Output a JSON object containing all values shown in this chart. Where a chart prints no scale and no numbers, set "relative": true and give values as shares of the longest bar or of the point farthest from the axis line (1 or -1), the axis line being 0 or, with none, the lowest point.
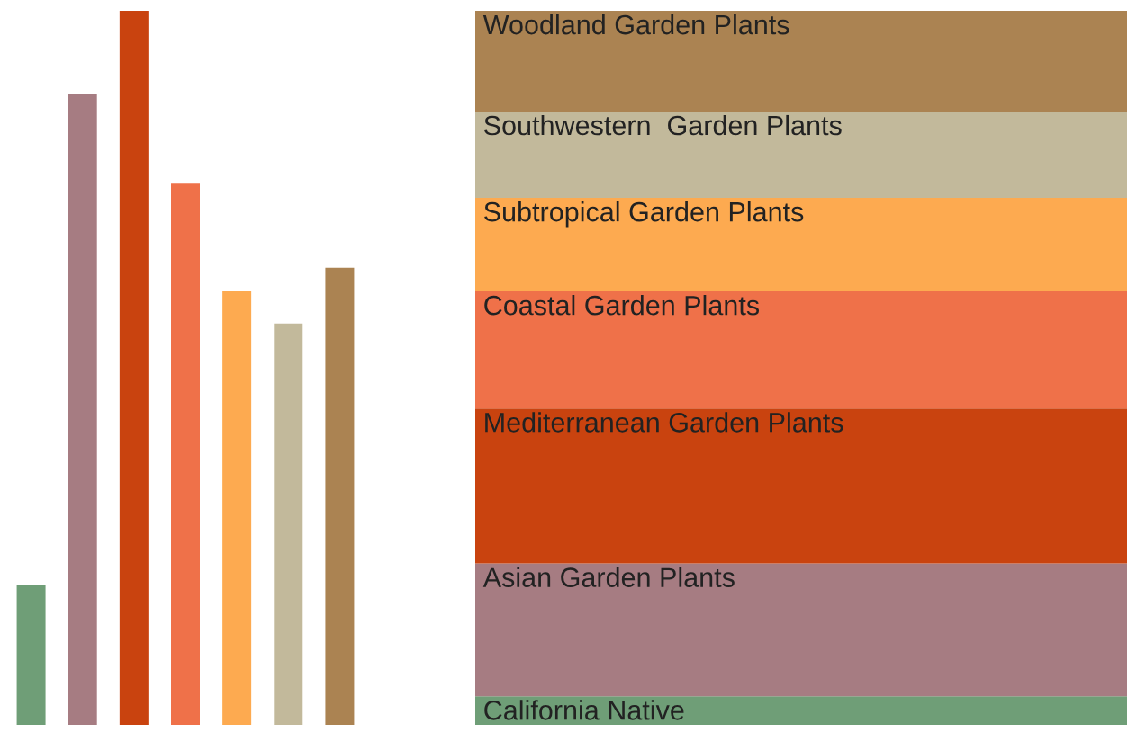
{
  "chart_data": [
    {
      "type": "bar",
      "relative": true,
      "categories": [
        null,
        null,
        null,
        null,
        null,
        null,
        null
      ],
      "values": [
        0.196,
        0.884,
        1,
        0.758,
        0.607,
        0.562,
        0.64
      ],
      "colors": [
        "#6f9e77",
        "#a67c82",
        "#c9430f",
        "#ef7149",
        "#fdaa50",
        "#c2b99b",
        "#ab8352"
      ]
    },
    {
      "type": "bar",
      "relative": true,
      "stacked": true,
      "categories": [
        null
      ],
      "series": [
        {
          "name": "California Native",
          "color": "#6f9e77",
          "values": [
            0.04
          ]
        },
        {
          "name": "Asian Garden Plants",
          "color": "#a67c82",
          "values": [
            0.186
          ]
        },
        {
          "name": "Mediterranean Garden Plants",
          "color": "#c9430f",
          "values": [
            0.217
          ]
        },
        {
          "name": "Coastal Garden Plants",
          "color": "#ef7149",
          "values": [
            0.164
          ]
        },
        {
          "name": "Subtropical Garden Plants",
          "color": "#fdaa50",
          "values": [
            0.131
          ]
        },
        {
          "name": "Southwestern  Garden Plants",
          "color": "#c2b99b",
          "values": [
            0.121
          ]
        },
        {
          "name": "Woodland Garden Plants",
          "color": "#ab8352",
          "values": [
            0.141
          ]
        }
      ]
    }
  ]
}
